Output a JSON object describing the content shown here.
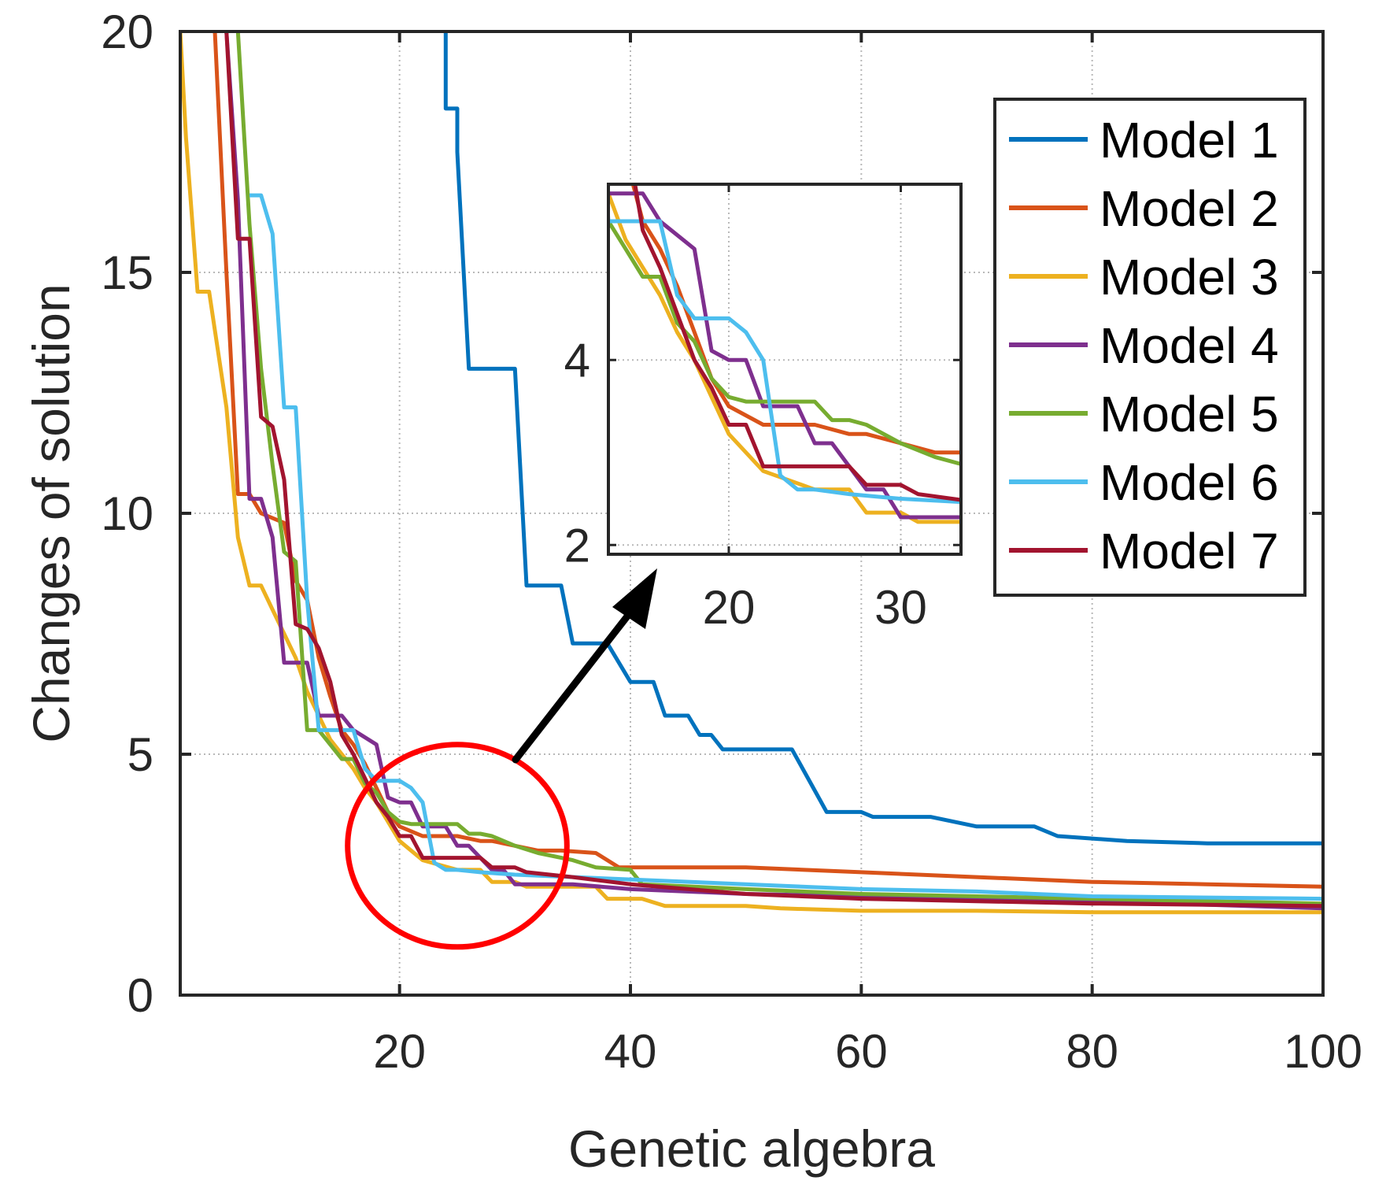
{
  "chart_data": {
    "type": "line",
    "xlabel": "Genetic algebra",
    "ylabel": "Changes of solution",
    "xlim": [
      1,
      100
    ],
    "ylim": [
      0,
      20
    ],
    "xticks": [
      20,
      40,
      60,
      80,
      100
    ],
    "yticks": [
      0,
      5,
      10,
      15,
      20
    ],
    "xtick_labels": [
      "20",
      "40",
      "60",
      "80",
      "100"
    ],
    "ytick_labels": [
      "0",
      "5",
      "10",
      "15",
      "20"
    ],
    "grid": true,
    "legend_position": "top-right",
    "series": [
      {
        "name": "Model 1",
        "color": "#0072BD",
        "points": [
          [
            24,
            20
          ],
          [
            24,
            18.4
          ],
          [
            25,
            18.4
          ],
          [
            25,
            17.5
          ],
          [
            26,
            13
          ],
          [
            30,
            13
          ],
          [
            31,
            8.5
          ],
          [
            34,
            8.5
          ],
          [
            35,
            7.3
          ],
          [
            38,
            7.3
          ],
          [
            40,
            6.5
          ],
          [
            42,
            6.5
          ],
          [
            43,
            5.8
          ],
          [
            45,
            5.8
          ],
          [
            46,
            5.4
          ],
          [
            47,
            5.4
          ],
          [
            48,
            5.1
          ],
          [
            54,
            5.1
          ],
          [
            57,
            3.8
          ],
          [
            60,
            3.8
          ],
          [
            61,
            3.7
          ],
          [
            66,
            3.7
          ],
          [
            68,
            3.6
          ],
          [
            70,
            3.5
          ],
          [
            75,
            3.5
          ],
          [
            77,
            3.3
          ],
          [
            83,
            3.2
          ],
          [
            90,
            3.15
          ],
          [
            100,
            3.15
          ]
        ]
      },
      {
        "name": "Model 2",
        "color": "#D95319",
        "points": [
          [
            4,
            20
          ],
          [
            5,
            15
          ],
          [
            6,
            10.4
          ],
          [
            7,
            10.4
          ],
          [
            8,
            10
          ],
          [
            10,
            9.8
          ],
          [
            11,
            8.6
          ],
          [
            12,
            8.2
          ],
          [
            13,
            7
          ],
          [
            14,
            6.2
          ],
          [
            15,
            5.5
          ],
          [
            16,
            5.2
          ],
          [
            17,
            4.8
          ],
          [
            18,
            4.3
          ],
          [
            19,
            3.8
          ],
          [
            20,
            3.5
          ],
          [
            22,
            3.3
          ],
          [
            25,
            3.3
          ],
          [
            27,
            3.2
          ],
          [
            28,
            3.2
          ],
          [
            30,
            3.1
          ],
          [
            32,
            3
          ],
          [
            34,
            3
          ],
          [
            37,
            2.95
          ],
          [
            38,
            2.8
          ],
          [
            39,
            2.65
          ],
          [
            50,
            2.65
          ],
          [
            60,
            2.55
          ],
          [
            70,
            2.45
          ],
          [
            80,
            2.35
          ],
          [
            90,
            2.3
          ],
          [
            100,
            2.25
          ]
        ]
      },
      {
        "name": "Model 3",
        "color": "#EDB120",
        "points": [
          [
            1,
            20
          ],
          [
            1.5,
            17.8
          ],
          [
            2.5,
            14.6
          ],
          [
            3.5,
            14.6
          ],
          [
            4,
            13.8
          ],
          [
            5,
            12.2
          ],
          [
            6,
            9.5
          ],
          [
            7,
            8.5
          ],
          [
            8,
            8.5
          ],
          [
            9,
            8
          ],
          [
            10,
            7.5
          ],
          [
            11,
            7
          ],
          [
            12,
            6.3
          ],
          [
            13,
            5.8
          ],
          [
            14,
            5.3
          ],
          [
            15,
            5
          ],
          [
            16,
            4.7
          ],
          [
            17,
            4.3
          ],
          [
            18,
            4
          ],
          [
            19,
            3.6
          ],
          [
            20,
            3.2
          ],
          [
            22,
            2.8
          ],
          [
            25,
            2.6
          ],
          [
            27,
            2.6
          ],
          [
            28,
            2.35
          ],
          [
            30,
            2.35
          ],
          [
            31,
            2.25
          ],
          [
            37,
            2.25
          ],
          [
            38,
            2
          ],
          [
            41,
            2
          ],
          [
            43,
            1.85
          ],
          [
            50,
            1.85
          ],
          [
            53,
            1.8
          ],
          [
            60,
            1.75
          ],
          [
            70,
            1.75
          ],
          [
            80,
            1.72
          ],
          [
            100,
            1.72
          ]
        ]
      },
      {
        "name": "Model 4",
        "color": "#7E2F8E",
        "points": [
          [
            5,
            20
          ],
          [
            6,
            16.5
          ],
          [
            7,
            10.3
          ],
          [
            8,
            10.3
          ],
          [
            9,
            9.5
          ],
          [
            10,
            6.9
          ],
          [
            12,
            6.9
          ],
          [
            13,
            5.8
          ],
          [
            15,
            5.8
          ],
          [
            16,
            5.5
          ],
          [
            18,
            5.2
          ],
          [
            19,
            4.1
          ],
          [
            20,
            4
          ],
          [
            21,
            4
          ],
          [
            22,
            3.5
          ],
          [
            24,
            3.5
          ],
          [
            25,
            3.1
          ],
          [
            26,
            3.1
          ],
          [
            28,
            2.6
          ],
          [
            29,
            2.6
          ],
          [
            30,
            2.3
          ],
          [
            35,
            2.3
          ],
          [
            40,
            2.2
          ],
          [
            50,
            2.1
          ],
          [
            60,
            2.05
          ],
          [
            70,
            2
          ],
          [
            80,
            1.95
          ],
          [
            100,
            1.8
          ]
        ]
      },
      {
        "name": "Model 5",
        "color": "#77AC30",
        "points": [
          [
            6,
            20
          ],
          [
            7,
            16
          ],
          [
            8,
            13
          ],
          [
            9,
            11
          ],
          [
            10,
            9.2
          ],
          [
            11,
            9
          ],
          [
            12,
            5.5
          ],
          [
            13,
            5.5
          ],
          [
            14,
            5.2
          ],
          [
            15,
            4.9
          ],
          [
            16,
            4.9
          ],
          [
            17,
            4.4
          ],
          [
            18,
            4.2
          ],
          [
            19,
            3.8
          ],
          [
            20,
            3.6
          ],
          [
            21,
            3.55
          ],
          [
            22,
            3.55
          ],
          [
            25,
            3.55
          ],
          [
            26,
            3.35
          ],
          [
            27,
            3.35
          ],
          [
            28,
            3.3
          ],
          [
            30,
            3.1
          ],
          [
            32,
            2.95
          ],
          [
            35,
            2.8
          ],
          [
            37,
            2.65
          ],
          [
            40,
            2.6
          ],
          [
            41,
            2.3
          ],
          [
            50,
            2.2
          ],
          [
            60,
            2.1
          ],
          [
            70,
            2.05
          ],
          [
            80,
            2
          ],
          [
            90,
            1.95
          ],
          [
            100,
            1.9
          ]
        ]
      },
      {
        "name": "Model 6",
        "color": "#4DBEEE",
        "points": [
          [
            7,
            16.6
          ],
          [
            8,
            16.6
          ],
          [
            9,
            15.8
          ],
          [
            10,
            12.2
          ],
          [
            11,
            12.2
          ],
          [
            12,
            8.2
          ],
          [
            13,
            5.5
          ],
          [
            14,
            5.5
          ],
          [
            15,
            5.5
          ],
          [
            16,
            5.5
          ],
          [
            17,
            4.7
          ],
          [
            18,
            4.45
          ],
          [
            19,
            4.45
          ],
          [
            20,
            4.45
          ],
          [
            21,
            4.3
          ],
          [
            22,
            4
          ],
          [
            23,
            2.75
          ],
          [
            24,
            2.6
          ],
          [
            25,
            2.6
          ],
          [
            27,
            2.55
          ],
          [
            30,
            2.5
          ],
          [
            40,
            2.4
          ],
          [
            50,
            2.3
          ],
          [
            60,
            2.2
          ],
          [
            70,
            2.15
          ],
          [
            80,
            2.05
          ],
          [
            100,
            2
          ]
        ]
      },
      {
        "name": "Model 7",
        "color": "#A2142F",
        "points": [
          [
            5,
            20
          ],
          [
            6,
            15.7
          ],
          [
            7,
            15.7
          ],
          [
            8,
            12
          ],
          [
            9,
            11.8
          ],
          [
            10,
            10.7
          ],
          [
            11,
            7.7
          ],
          [
            12,
            7.6
          ],
          [
            13,
            7.2
          ],
          [
            14,
            6.5
          ],
          [
            15,
            5.4
          ],
          [
            16,
            5
          ],
          [
            17,
            4.5
          ],
          [
            18,
            4
          ],
          [
            19,
            3.7
          ],
          [
            20,
            3.3
          ],
          [
            21,
            3.3
          ],
          [
            22,
            2.85
          ],
          [
            25,
            2.85
          ],
          [
            27,
            2.85
          ],
          [
            28,
            2.65
          ],
          [
            30,
            2.65
          ],
          [
            31,
            2.55
          ],
          [
            35,
            2.45
          ],
          [
            40,
            2.3
          ],
          [
            50,
            2.1
          ],
          [
            60,
            2
          ],
          [
            70,
            1.95
          ],
          [
            80,
            1.9
          ],
          [
            100,
            1.85
          ]
        ]
      }
    ],
    "inset": {
      "xlim": [
        13,
        33.5
      ],
      "ylim": [
        1.9,
        5.9
      ],
      "xticks": [
        20,
        30
      ],
      "yticks": [
        2,
        4
      ],
      "xtick_labels": [
        "20",
        "30"
      ],
      "ytick_labels": [
        "2",
        "4"
      ]
    },
    "annotation": {
      "shape": "ellipse",
      "color": "#FF0000",
      "center": [
        25,
        3.1
      ],
      "radius": [
        9.5,
        2.1
      ]
    }
  }
}
